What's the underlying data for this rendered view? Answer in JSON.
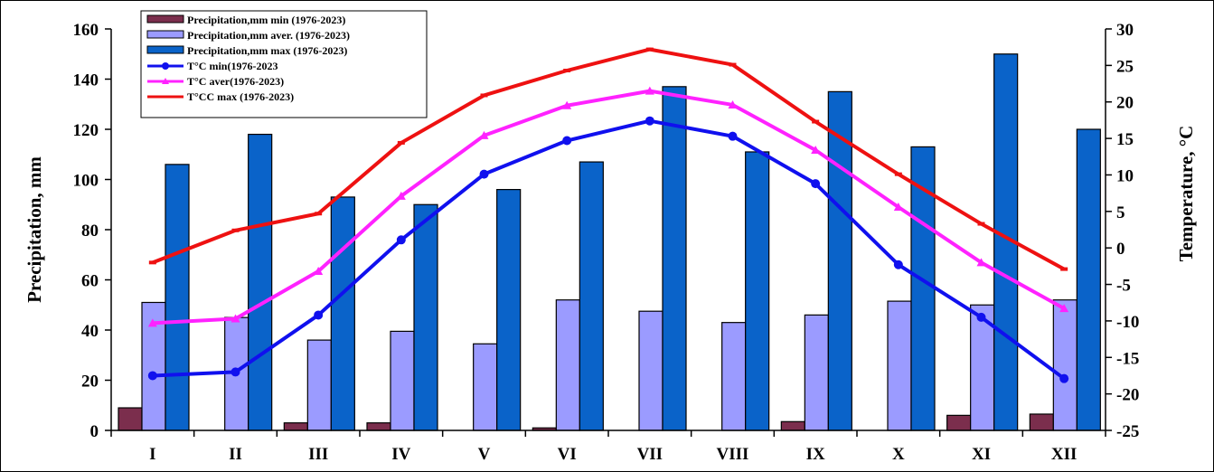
{
  "chart_data": {
    "type": "bar",
    "categories": [
      "I",
      "II",
      "III",
      "IV",
      "V",
      "VI",
      "VII",
      "VIII",
      "IX",
      "X",
      "XI",
      "XII"
    ],
    "xlabel": "",
    "ylabel": "Precipitation, mm",
    "y2label": "Temperature, °C",
    "ylim": [
      0,
      160
    ],
    "y2lim": [
      -25,
      30
    ],
    "yticks": [
      "0",
      "20",
      "40",
      "60",
      "80",
      "100",
      "120",
      "140",
      "160"
    ],
    "y2ticks": [
      "-25",
      "-20",
      "-15",
      "-10",
      "-5",
      "0",
      "5",
      "10",
      "15",
      "20",
      "25",
      "30"
    ],
    "grid": false,
    "legend_position": "top-left",
    "series": [
      {
        "name": "Precipitation,mm min (1976-2023)",
        "kind": "bar",
        "axis": "left",
        "color": "#7b2e4d",
        "values": [
          9,
          0,
          3,
          3,
          0,
          1,
          0,
          0,
          3.5,
          0,
          6,
          6.5
        ]
      },
      {
        "name": "Precipitation,mm aver. (1976-2023)",
        "kind": "bar",
        "axis": "left",
        "color": "#9b9bff",
        "values": [
          51,
          45,
          36,
          39.5,
          34.5,
          52,
          47.5,
          43,
          46,
          51.5,
          50,
          52
        ]
      },
      {
        "name": "Precipitation,mm max (1976-2023)",
        "kind": "bar",
        "axis": "left",
        "color": "#0a63c9",
        "values": [
          106,
          118,
          93,
          90,
          96,
          107,
          137,
          111,
          135,
          113,
          150,
          120
        ]
      },
      {
        "name": "T°C min(1976-2023",
        "kind": "line",
        "axis": "right",
        "color": "#1010ee",
        "marker": "circle",
        "values": [
          -17.5,
          -17,
          -9.2,
          1.1,
          10.1,
          14.7,
          17.4,
          15.3,
          8.8,
          -2.3,
          -9.5,
          -17.9
        ]
      },
      {
        "name": "T°C aver(1976-2023)",
        "kind": "line",
        "axis": "right",
        "color": "#ff22ff",
        "marker": "triangle",
        "values": [
          -10.3,
          -9.7,
          -3.2,
          7.1,
          15.4,
          19.5,
          21.5,
          19.6,
          13.4,
          5.6,
          -2,
          -8.3
        ]
      },
      {
        "name": "T°CC max (1976-2023)",
        "kind": "line",
        "axis": "right",
        "color": "#ee1111",
        "marker": "dash",
        "values": [
          -2,
          2.4,
          4.7,
          14.4,
          20.9,
          24.3,
          27.2,
          25.1,
          17.3,
          10.1,
          3.3,
          -2.9
        ]
      }
    ]
  }
}
